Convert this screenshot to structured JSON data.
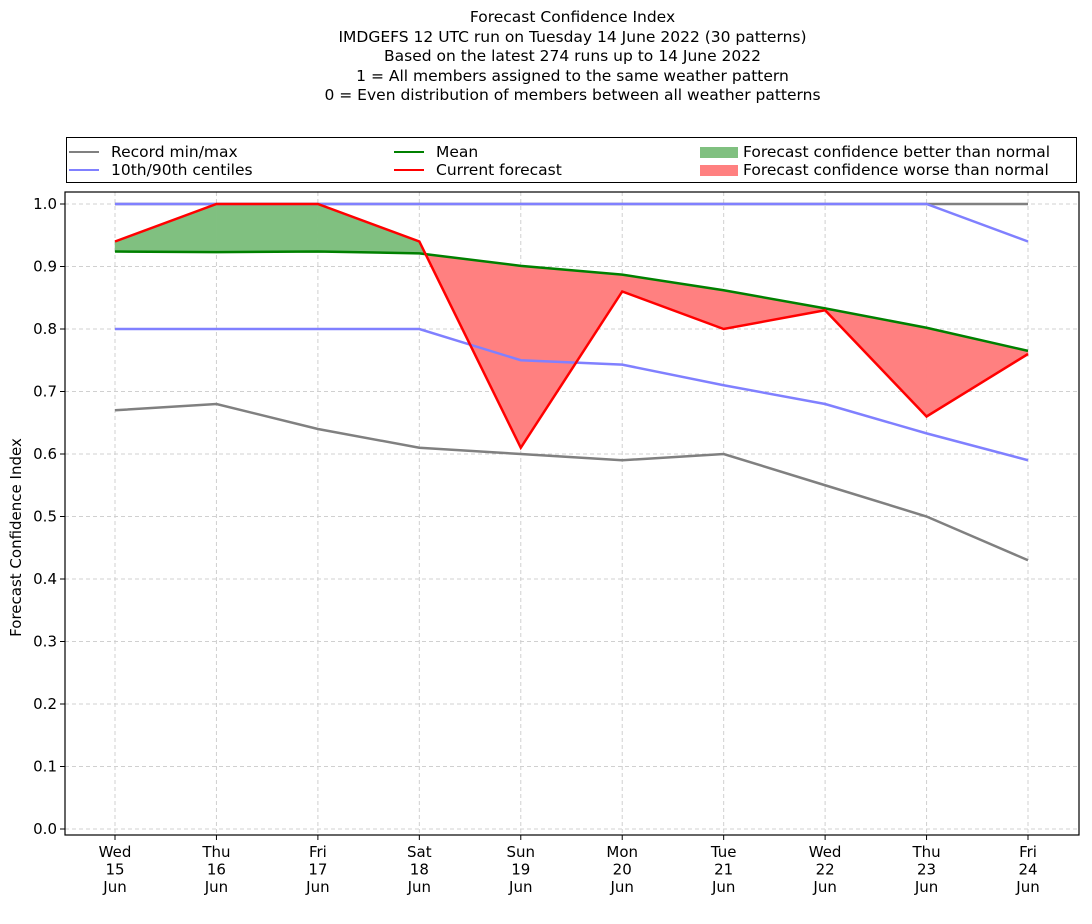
{
  "chart_data": {
    "type": "line",
    "title_lines": [
      "Forecast Confidence Index",
      "IMDGEFS 12 UTC run on Tuesday 14 June 2022 (30 patterns)",
      "Based on the latest 274 runs up to 14 June 2022",
      "1 = All members assigned to the same weather pattern",
      "0 = Even distribution of members between all weather patterns"
    ],
    "ylabel": "Forecast Confidence Index",
    "xlabel": "",
    "ylim": [
      0.0,
      1.0
    ],
    "yticks": [
      "0.0",
      "0.1",
      "0.2",
      "0.3",
      "0.4",
      "0.5",
      "0.6",
      "0.7",
      "0.8",
      "0.9",
      "1.0"
    ],
    "categories": [
      [
        "Wed",
        "15",
        "Jun"
      ],
      [
        "Thu",
        "16",
        "Jun"
      ],
      [
        "Fri",
        "17",
        "Jun"
      ],
      [
        "Sat",
        "18",
        "Jun"
      ],
      [
        "Sun",
        "19",
        "Jun"
      ],
      [
        "Mon",
        "20",
        "Jun"
      ],
      [
        "Tue",
        "21",
        "Jun"
      ],
      [
        "Wed",
        "22",
        "Jun"
      ],
      [
        "Thu",
        "23",
        "Jun"
      ],
      [
        "Fri",
        "24",
        "Jun"
      ]
    ],
    "grid": true,
    "legend_position": "top (above plot, 3 columns)",
    "series": [
      {
        "name": "Record max",
        "legend": "Record min/max",
        "color": "#808080",
        "values": [
          1.0,
          1.0,
          1.0,
          1.0,
          1.0,
          1.0,
          1.0,
          1.0,
          1.0,
          1.0
        ]
      },
      {
        "name": "Record min",
        "legend": "Record min/max",
        "color": "#808080",
        "values": [
          0.67,
          0.68,
          0.64,
          0.61,
          0.6,
          0.59,
          0.6,
          0.55,
          0.5,
          0.43
        ]
      },
      {
        "name": "90th centile",
        "legend": "10th/90th centiles",
        "color": "#8080ff",
        "values": [
          1.0,
          1.0,
          1.0,
          1.0,
          1.0,
          1.0,
          1.0,
          1.0,
          1.0,
          0.94
        ]
      },
      {
        "name": "10th centile",
        "legend": "10th/90th centiles",
        "color": "#8080ff",
        "values": [
          0.8,
          0.8,
          0.8,
          0.8,
          0.75,
          0.743,
          0.71,
          0.68,
          0.633,
          0.59
        ]
      },
      {
        "name": "Mean",
        "legend": "Mean",
        "color": "#008000",
        "values": [
          0.924,
          0.923,
          0.924,
          0.921,
          0.901,
          0.887,
          0.862,
          0.833,
          0.802,
          0.765
        ]
      },
      {
        "name": "Current forecast",
        "legend": "Current forecast",
        "color": "#ff0000",
        "values": [
          0.94,
          1.0,
          1.0,
          0.94,
          0.61,
          0.86,
          0.8,
          0.83,
          0.66,
          0.76
        ]
      }
    ],
    "fills": [
      {
        "name": "Forecast confidence better than normal",
        "color": "#80c080",
        "condition": "current > mean"
      },
      {
        "name": "Forecast confidence worse than normal",
        "color": "#ff8080",
        "condition": "current < mean"
      }
    ]
  },
  "legend": {
    "record": {
      "label": "Record min/max",
      "color": "#808080"
    },
    "centiles": {
      "label": "10th/90th centiles",
      "color": "#8080ff"
    },
    "mean": {
      "label": "Mean",
      "color": "#008000"
    },
    "current": {
      "label": "Current forecast",
      "color": "#ff0000"
    },
    "better": {
      "label": "Forecast confidence better than normal",
      "color": "#80c080"
    },
    "worse": {
      "label": "Forecast confidence worse than normal",
      "color": "#ff8080"
    }
  }
}
